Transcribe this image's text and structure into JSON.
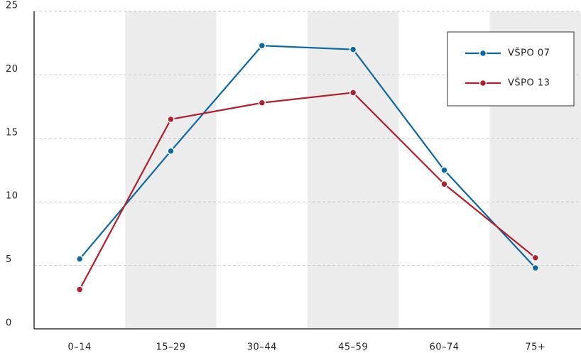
{
  "chart_data": {
    "type": "line",
    "categories": [
      "0–14",
      "15–29",
      "30–44",
      "45–59",
      "60–74",
      "75+"
    ],
    "series": [
      {
        "name": "VŠPO 07",
        "color": "#0a69a5",
        "values": [
          5.5,
          14.0,
          22.3,
          22.0,
          12.5,
          4.8
        ]
      },
      {
        "name": "VŠPO 13",
        "color": "#b41f2d",
        "values": [
          3.1,
          16.5,
          17.8,
          18.6,
          11.4,
          5.6
        ]
      }
    ],
    "ylim": [
      0,
      25
    ],
    "yticks": [
      0,
      5,
      10,
      15,
      20,
      25
    ],
    "grid": true,
    "legend": "top-right"
  }
}
